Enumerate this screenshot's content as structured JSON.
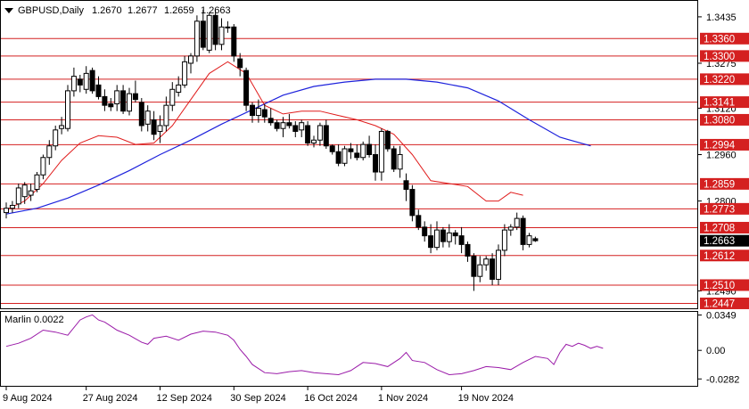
{
  "chart_data": [
    {
      "type": "candlestick",
      "title": "GBPUSD,Daily",
      "ohlc_header": [
        "1.2670",
        "1.2677",
        "1.2659",
        "1.2663"
      ],
      "current_price": "1.2663",
      "ylim": [
        1.243,
        1.349
      ],
      "y_ticks": [
        "1.3435",
        "1.3275",
        "1.3120",
        "1.2960",
        "1.2800",
        "1.2490"
      ],
      "x_tick_labels": [
        {
          "label": "9 Aug 2024",
          "index": 0
        },
        {
          "label": "27 Aug 2024",
          "index": 13
        },
        {
          "label": "12 Sep 2024",
          "index": 25
        },
        {
          "label": "30 Sep 2024",
          "index": 37
        },
        {
          "label": "16 Oct 2024",
          "index": 49
        },
        {
          "label": "1 Nov 2024",
          "index": 61
        },
        {
          "label": "19 Nov 2024",
          "index": 74
        }
      ],
      "candles": [
        [
          1.276,
          1.2795,
          1.274,
          1.2775
        ],
        [
          1.2775,
          1.28,
          1.276,
          1.2785
        ],
        [
          1.279,
          1.286,
          1.2775,
          1.2845
        ],
        [
          1.2815,
          1.2865,
          1.279,
          1.2855
        ],
        [
          1.282,
          1.286,
          1.28,
          1.2835
        ],
        [
          1.284,
          1.29,
          1.283,
          1.289
        ],
        [
          1.289,
          1.296,
          1.2875,
          1.295
        ],
        [
          1.295,
          1.301,
          1.2925,
          1.299
        ],
        [
          1.299,
          1.306,
          1.2975,
          1.3045
        ],
        [
          1.305,
          1.309,
          1.303,
          1.306
        ],
        [
          1.305,
          1.32,
          1.304,
          1.318
        ],
        [
          1.318,
          1.326,
          1.316,
          1.323
        ],
        [
          1.322,
          1.3235,
          1.3175,
          1.32
        ],
        [
          1.3185,
          1.3265,
          1.317,
          1.324
        ],
        [
          1.325,
          1.326,
          1.317,
          1.318
        ],
        [
          1.32,
          1.323,
          1.315,
          1.316
        ],
        [
          1.316,
          1.3185,
          1.311,
          1.313
        ],
        [
          1.3135,
          1.3155,
          1.311,
          1.3125
        ],
        [
          1.3135,
          1.32,
          1.311,
          1.318
        ],
        [
          1.318,
          1.32,
          1.31,
          1.311
        ],
        [
          1.311,
          1.319,
          1.3095,
          1.317
        ],
        [
          1.317,
          1.3215,
          1.314,
          1.315
        ],
        [
          1.314,
          1.3155,
          1.304,
          1.306
        ],
        [
          1.3065,
          1.313,
          1.304,
          1.311
        ],
        [
          1.308,
          1.311,
          1.301,
          1.303
        ],
        [
          1.304,
          1.3095,
          1.3,
          1.306
        ],
        [
          1.306,
          1.316,
          1.304,
          1.313
        ],
        [
          1.313,
          1.321,
          1.311,
          1.3185
        ],
        [
          1.3175,
          1.323,
          1.316,
          1.32
        ],
        [
          1.32,
          1.33,
          1.319,
          1.328
        ],
        [
          1.3275,
          1.331,
          1.324,
          1.33
        ],
        [
          1.33,
          1.344,
          1.328,
          1.342
        ],
        [
          1.342,
          1.346,
          1.332,
          1.333
        ],
        [
          1.332,
          1.345,
          1.331,
          1.344
        ],
        [
          1.344,
          1.346,
          1.332,
          1.334
        ],
        [
          1.334,
          1.343,
          1.332,
          1.34
        ],
        [
          1.34,
          1.342,
          1.338,
          1.34
        ],
        [
          1.34,
          1.341,
          1.328,
          1.33
        ],
        [
          1.329,
          1.331,
          1.323,
          1.326
        ],
        [
          1.325,
          1.326,
          1.311,
          1.313
        ],
        [
          1.313,
          1.314,
          1.307,
          1.3095
        ],
        [
          1.3095,
          1.315,
          1.307,
          1.312
        ],
        [
          1.3115,
          1.3135,
          1.307,
          1.309
        ],
        [
          1.3085,
          1.312,
          1.306,
          1.307
        ],
        [
          1.307,
          1.308,
          1.304,
          1.305
        ],
        [
          1.305,
          1.309,
          1.302,
          1.307
        ],
        [
          1.307,
          1.31,
          1.305,
          1.306
        ],
        [
          1.306,
          1.3075,
          1.302,
          1.304
        ],
        [
          1.3045,
          1.308,
          1.302,
          1.307
        ],
        [
          1.306,
          1.3075,
          1.299,
          1.3
        ],
        [
          1.3,
          1.3025,
          1.2985,
          1.301
        ],
        [
          1.301,
          1.307,
          1.299,
          1.306
        ],
        [
          1.306,
          1.308,
          1.298,
          1.299
        ],
        [
          1.299,
          1.2995,
          1.296,
          1.297
        ],
        [
          1.297,
          1.2995,
          1.292,
          1.293
        ],
        [
          1.293,
          1.299,
          1.292,
          1.298
        ],
        [
          1.298,
          1.3,
          1.2945,
          1.297
        ],
        [
          1.2965,
          1.2995,
          1.294,
          1.295
        ],
        [
          1.295,
          1.3005,
          1.294,
          1.2995
        ],
        [
          1.2995,
          1.3025,
          1.295,
          1.296
        ],
        [
          1.296,
          1.2995,
          1.287,
          1.29
        ],
        [
          1.29,
          1.305,
          1.287,
          1.304
        ],
        [
          1.304,
          1.3045,
          1.297,
          1.298
        ],
        [
          1.298,
          1.299,
          1.29,
          1.291
        ],
        [
          1.291,
          1.299,
          1.288,
          1.296
        ],
        [
          1.287,
          1.2895,
          1.28,
          1.284
        ],
        [
          1.284,
          1.2855,
          1.273,
          1.275
        ],
        [
          1.275,
          1.277,
          1.27,
          1.271
        ],
        [
          1.271,
          1.273,
          1.266,
          1.268
        ],
        [
          1.268,
          1.272,
          1.262,
          1.264
        ],
        [
          1.264,
          1.273,
          1.263,
          1.27
        ],
        [
          1.27,
          1.271,
          1.264,
          1.266
        ],
        [
          1.266,
          1.272,
          1.264,
          1.269
        ],
        [
          1.269,
          1.27,
          1.265,
          1.268
        ],
        [
          1.268,
          1.271,
          1.262,
          1.265
        ],
        [
          1.265,
          1.266,
          1.259,
          1.261
        ],
        [
          1.261,
          1.262,
          1.249,
          1.254
        ],
        [
          1.254,
          1.261,
          1.252,
          1.258
        ],
        [
          1.258,
          1.261,
          1.256,
          1.26
        ],
        [
          1.26,
          1.262,
          1.251,
          1.253
        ],
        [
          1.253,
          1.265,
          1.251,
          1.263
        ],
        [
          1.263,
          1.272,
          1.261,
          1.27
        ],
        [
          1.27,
          1.272,
          1.268,
          1.271
        ],
        [
          1.271,
          1.276,
          1.27,
          1.274
        ],
        [
          1.274,
          1.275,
          1.263,
          1.265
        ],
        [
          1.265,
          1.269,
          1.264,
          1.268
        ],
        [
          1.267,
          1.2677,
          1.2659,
          1.2663
        ]
      ],
      "ma_slow_color": "#1e22dc",
      "ma_slow": [
        [
          0,
          1.2755
        ],
        [
          5,
          1.2775
        ],
        [
          10,
          1.281
        ],
        [
          15,
          1.2855
        ],
        [
          20,
          1.2905
        ],
        [
          25,
          1.296
        ],
        [
          30,
          1.301
        ],
        [
          35,
          1.3065
        ],
        [
          40,
          1.3115
        ],
        [
          45,
          1.3165
        ],
        [
          50,
          1.3195
        ],
        [
          55,
          1.321
        ],
        [
          60,
          1.322
        ],
        [
          65,
          1.322
        ],
        [
          70,
          1.321
        ],
        [
          75,
          1.319
        ],
        [
          80,
          1.3145
        ],
        [
          85,
          1.308
        ],
        [
          90,
          1.302
        ],
        [
          95,
          1.299
        ]
      ],
      "ma_fast_color": "#e01c1c",
      "ma_fast": [
        [
          0,
          1.277
        ],
        [
          3,
          1.28
        ],
        [
          6,
          1.286
        ],
        [
          9,
          1.294
        ],
        [
          12,
          1.3
        ],
        [
          15,
          1.3025
        ],
        [
          18,
          1.302
        ],
        [
          21,
          1.2995
        ],
        [
          24,
          1.3
        ],
        [
          27,
          1.306
        ],
        [
          30,
          1.315
        ],
        [
          33,
          1.324
        ],
        [
          36,
          1.328
        ],
        [
          39,
          1.324
        ],
        [
          42,
          1.313
        ],
        [
          45,
          1.31
        ],
        [
          48,
          1.311
        ],
        [
          51,
          1.311
        ],
        [
          54,
          1.3095
        ],
        [
          57,
          1.308
        ],
        [
          60,
          1.306
        ],
        [
          63,
          1.303
        ],
        [
          66,
          1.296
        ],
        [
          69,
          1.287
        ],
        [
          72,
          1.286
        ],
        [
          75,
          1.285
        ],
        [
          78,
          1.28
        ],
        [
          80,
          1.28
        ],
        [
          82,
          1.283
        ],
        [
          84,
          1.282
        ]
      ],
      "levels": [
        {
          "value": 1.336,
          "label": "1.3360"
        },
        {
          "value": 1.33,
          "label": "1.3300"
        },
        {
          "value": 1.322,
          "label": "1.3220"
        },
        {
          "value": 1.3141,
          "label": "1.3141"
        },
        {
          "value": 1.308,
          "label": "1.3080"
        },
        {
          "value": 1.2994,
          "label": "1.2994"
        },
        {
          "value": 1.2859,
          "label": "1.2859"
        },
        {
          "value": 1.2773,
          "label": "1.2773"
        },
        {
          "value": 1.2708,
          "label": "1.2708"
        },
        {
          "value": 1.2612,
          "label": "1.2612"
        },
        {
          "value": 1.251,
          "label": "1.2510"
        },
        {
          "value": 1.2447,
          "label": "1.2447"
        }
      ],
      "level_color": "#d42020",
      "price_label_color": "#000000"
    },
    {
      "type": "line",
      "title": "Marlin 0.0022",
      "series_color": "#9a1aa8",
      "ylim": [
        -0.035,
        0.038
      ],
      "y_ticks": [
        "0.0349",
        "0.00",
        "-0.0282"
      ],
      "values": [
        [
          0,
          0.004
        ],
        [
          2,
          0.007
        ],
        [
          4,
          0.012
        ],
        [
          6,
          0.02
        ],
        [
          8,
          0.018
        ],
        [
          10,
          0.015
        ],
        [
          12,
          0.03
        ],
        [
          13,
          0.033
        ],
        [
          14,
          0.035
        ],
        [
          15,
          0.03
        ],
        [
          16,
          0.028
        ],
        [
          18,
          0.02
        ],
        [
          20,
          0.015
        ],
        [
          22,
          0.008
        ],
        [
          23,
          0.006
        ],
        [
          24,
          0.012
        ],
        [
          26,
          0.014
        ],
        [
          28,
          0.01
        ],
        [
          30,
          0.016
        ],
        [
          32,
          0.019
        ],
        [
          34,
          0.018
        ],
        [
          36,
          0.015
        ],
        [
          37,
          0.01
        ],
        [
          38,
          0.001
        ],
        [
          39,
          -0.006
        ],
        [
          40,
          -0.014
        ],
        [
          42,
          -0.022
        ],
        [
          44,
          -0.023
        ],
        [
          46,
          -0.021
        ],
        [
          48,
          -0.02
        ],
        [
          50,
          -0.022
        ],
        [
          52,
          -0.023
        ],
        [
          54,
          -0.024
        ],
        [
          56,
          -0.02
        ],
        [
          58,
          -0.012
        ],
        [
          60,
          -0.013
        ],
        [
          62,
          -0.016
        ],
        [
          64,
          -0.008
        ],
        [
          65,
          -0.002
        ],
        [
          66,
          -0.01
        ],
        [
          68,
          -0.012
        ],
        [
          70,
          -0.019
        ],
        [
          72,
          -0.024
        ],
        [
          74,
          -0.023
        ],
        [
          76,
          -0.02
        ],
        [
          78,
          -0.016
        ],
        [
          80,
          -0.017
        ],
        [
          82,
          -0.019
        ],
        [
          84,
          -0.012
        ],
        [
          86,
          -0.006
        ],
        [
          88,
          -0.008
        ],
        [
          89,
          -0.014
        ],
        [
          90,
          -0.002
        ],
        [
          91,
          0.006
        ],
        [
          92,
          0.004
        ],
        [
          93,
          0.007
        ],
        [
          94,
          0.005
        ],
        [
          95,
          0.002
        ],
        [
          96,
          0.004
        ],
        [
          97,
          0.002
        ]
      ]
    }
  ]
}
